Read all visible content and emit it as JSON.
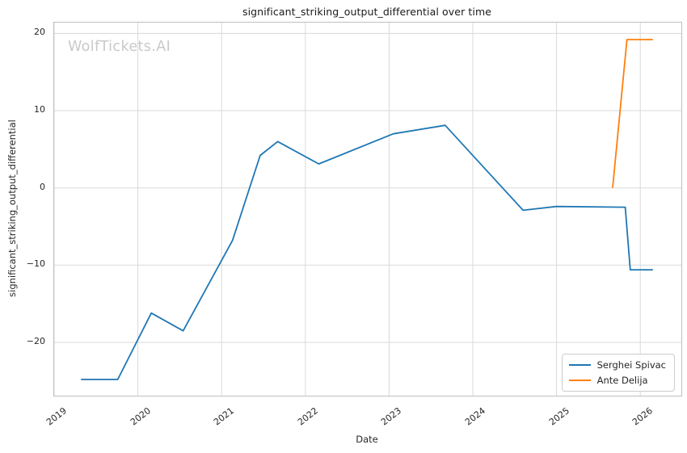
{
  "figure": {
    "title": "significant_striking_output_differential over time",
    "watermark": "WolfTickets.AI",
    "xlabel": "Date",
    "ylabel": "significant_striking_output_differential"
  },
  "legend": {
    "position": "lower right",
    "entries": [
      {
        "label": "Serghei Spivac",
        "color": "#1f77b4"
      },
      {
        "label": "Ante Delija",
        "color": "#ff7f0e"
      }
    ]
  },
  "colors": {
    "series_blue": "#1f77b4",
    "series_orange": "#ff7f0e",
    "grid": "#d9d9d9",
    "spine": "#bfbfbf",
    "text": "#262626",
    "watermark": "#c9c9c9",
    "background": "#ffffff"
  },
  "chart_data": {
    "type": "line",
    "title": "significant_striking_output_differential over time",
    "xlabel": "Date",
    "ylabel": "significant_striking_output_differential",
    "x_unit": "decimal_year",
    "xlim": [
      2019.0,
      2026.49
    ],
    "ylim": [
      -26.9,
      21.4
    ],
    "xticks": [
      2019,
      2020,
      2021,
      2022,
      2023,
      2024,
      2025,
      2026
    ],
    "yticks": [
      -20,
      -10,
      0,
      10,
      20
    ],
    "grid": true,
    "legend_position": "lower right",
    "series": [
      {
        "name": "Serghei Spivac",
        "color": "#1f77b4",
        "x": [
          2019.32,
          2019.76,
          2020.16,
          2020.54,
          2021.13,
          2021.46,
          2021.67,
          2022.16,
          2023.05,
          2023.67,
          2024.6,
          2025.0,
          2025.82,
          2025.88,
          2026.15
        ],
        "y": [
          -24.8,
          -24.8,
          -16.2,
          -18.5,
          -6.8,
          4.2,
          6.0,
          3.1,
          7.0,
          8.1,
          -2.9,
          -2.4,
          -2.5,
          -10.6,
          -10.6
        ]
      },
      {
        "name": "Ante Delija",
        "color": "#ff7f0e",
        "x": [
          2025.67,
          2025.84,
          2026.15
        ],
        "y": [
          0.0,
          19.2,
          19.2
        ]
      }
    ]
  }
}
